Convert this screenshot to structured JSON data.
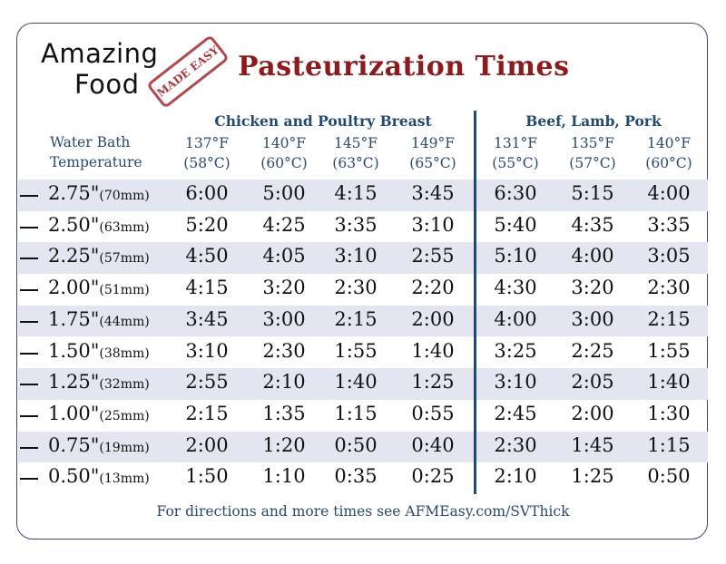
{
  "logo": {
    "line1": "Amazing",
    "line2": "Food",
    "stamp": "MADE EASY"
  },
  "title": "Pasteurization Times",
  "header": {
    "row_label_line1": "Water Bath",
    "row_label_line2": "Temperature",
    "groups": [
      {
        "label": "Chicken and Poultry Breast",
        "temps": [
          [
            "137°F",
            "(58°C)"
          ],
          [
            "140°F",
            "(60°C)"
          ],
          [
            "145°F",
            "(63°C)"
          ],
          [
            "149°F",
            "(65°C)"
          ]
        ]
      },
      {
        "label": "Beef, Lamb, Pork",
        "temps": [
          [
            "131°F",
            "(55°C)"
          ],
          [
            "135°F",
            "(57°C)"
          ],
          [
            "140°F",
            "(60°C)"
          ]
        ]
      }
    ]
  },
  "rows": [
    {
      "in": "2.75\"",
      "mm": "(70mm)",
      "times": [
        "6:00",
        "5:00",
        "4:15",
        "3:45",
        "6:30",
        "5:15",
        "4:00"
      ]
    },
    {
      "in": "2.50\"",
      "mm": "(63mm)",
      "times": [
        "5:20",
        "4:25",
        "3:35",
        "3:10",
        "5:40",
        "4:35",
        "3:35"
      ]
    },
    {
      "in": "2.25\"",
      "mm": "(57mm)",
      "times": [
        "4:50",
        "4:05",
        "3:10",
        "2:55",
        "5:10",
        "4:00",
        "3:05"
      ]
    },
    {
      "in": "2.00\"",
      "mm": "(51mm)",
      "times": [
        "4:15",
        "3:20",
        "2:30",
        "2:20",
        "4:30",
        "3:20",
        "2:30"
      ]
    },
    {
      "in": "1.75\"",
      "mm": "(44mm)",
      "times": [
        "3:45",
        "3:00",
        "2:15",
        "2:00",
        "4:00",
        "3:00",
        "2:15"
      ]
    },
    {
      "in": "1.50\"",
      "mm": "(38mm)",
      "times": [
        "3:10",
        "2:30",
        "1:55",
        "1:40",
        "3:25",
        "2:25",
        "1:55"
      ]
    },
    {
      "in": "1.25\"",
      "mm": "(32mm)",
      "times": [
        "2:55",
        "2:10",
        "1:40",
        "1:25",
        "3:10",
        "2:05",
        "1:40"
      ]
    },
    {
      "in": "1.00\"",
      "mm": "(25mm)",
      "times": [
        "2:15",
        "1:35",
        "1:15",
        "0:55",
        "2:45",
        "2:00",
        "1:30"
      ]
    },
    {
      "in": "0.75\"",
      "mm": "(19mm)",
      "times": [
        "2:00",
        "1:20",
        "0:50",
        "0:40",
        "2:30",
        "1:45",
        "1:15"
      ]
    },
    {
      "in": "0.50\"",
      "mm": "(13mm)",
      "times": [
        "1:50",
        "1:10",
        "0:35",
        "0:25",
        "2:10",
        "1:25",
        "0:50"
      ]
    }
  ],
  "footer": "For directions and more times see AFMEasy.com/SVThick",
  "colors": {
    "title": "#8c1b1d",
    "header": "#234a70",
    "band": "#e3e5f0",
    "border": "#3a4782"
  }
}
